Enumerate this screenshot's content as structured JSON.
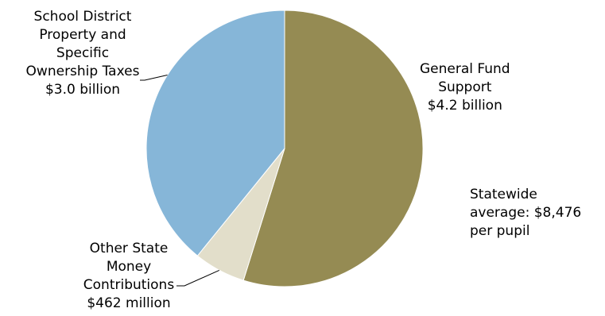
{
  "chart_data": {
    "type": "pie",
    "slices": [
      {
        "label_lines": [
          "General Fund",
          "Support",
          "$4.2 billion"
        ],
        "value": 4.2,
        "color": "#958B53"
      },
      {
        "label_lines": [
          "Other State",
          "Money",
          "Contributions",
          "$462 million"
        ],
        "value": 0.462,
        "color": "#E2DECA"
      },
      {
        "label_lines": [
          "School District",
          "Property and",
          "Specific",
          "Ownership Taxes",
          "$3.0 billion"
        ],
        "value": 3.0,
        "color": "#86B6D8"
      }
    ],
    "annotation_lines": [
      "Statewide",
      "average: $8,476",
      "per pupil"
    ]
  }
}
